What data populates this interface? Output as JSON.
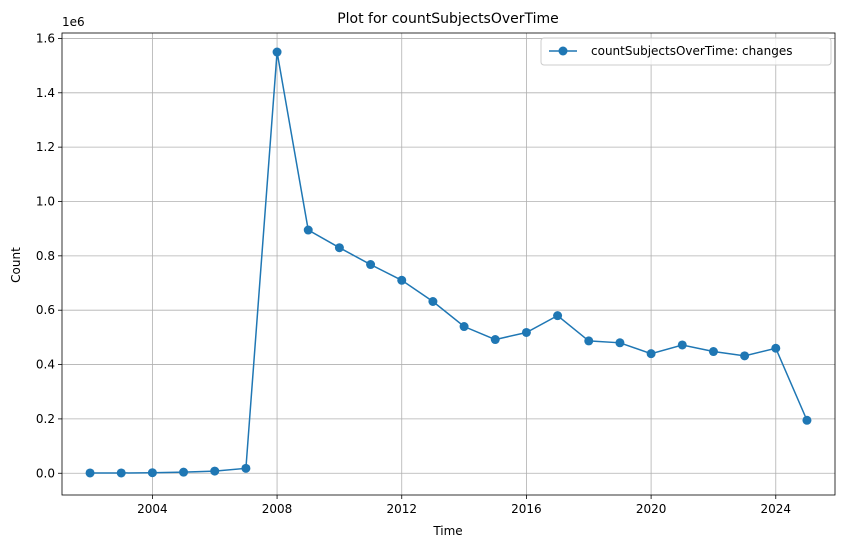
{
  "chart_data": {
    "type": "line",
    "title": "Plot for countSubjectsOverTime",
    "xlabel": "Time",
    "ylabel": "Count",
    "y_offset_label": "1e6",
    "xlim": [
      2001.1,
      2025.9
    ],
    "ylim": [
      -80000,
      1620000
    ],
    "x_ticks": [
      2004,
      2008,
      2012,
      2016,
      2020,
      2024
    ],
    "y_ticks": [
      0,
      200000,
      400000,
      600000,
      800000,
      1000000,
      1200000,
      1400000,
      1600000
    ],
    "y_tick_labels": [
      "0.0",
      "0.2",
      "0.4",
      "0.6",
      "0.8",
      "1.0",
      "1.2",
      "1.4",
      "1.6"
    ],
    "grid": true,
    "legend_position": "top-right",
    "series": [
      {
        "name": "countSubjectsOverTime: changes",
        "color": "#1f77b4",
        "marker": "circle",
        "x": [
          2002,
          2003,
          2004,
          2005,
          2006,
          2007,
          2008,
          2009,
          2010,
          2011,
          2012,
          2013,
          2014,
          2015,
          2016,
          2017,
          2018,
          2019,
          2020,
          2021,
          2022,
          2023,
          2024,
          2025
        ],
        "y": [
          1000,
          1000,
          2000,
          4000,
          8000,
          18000,
          1550000,
          895000,
          830000,
          768000,
          710000,
          632000,
          540000,
          492000,
          518000,
          580000,
          487000,
          480000,
          440000,
          472000,
          448000,
          432000,
          460000,
          195000
        ]
      }
    ]
  }
}
